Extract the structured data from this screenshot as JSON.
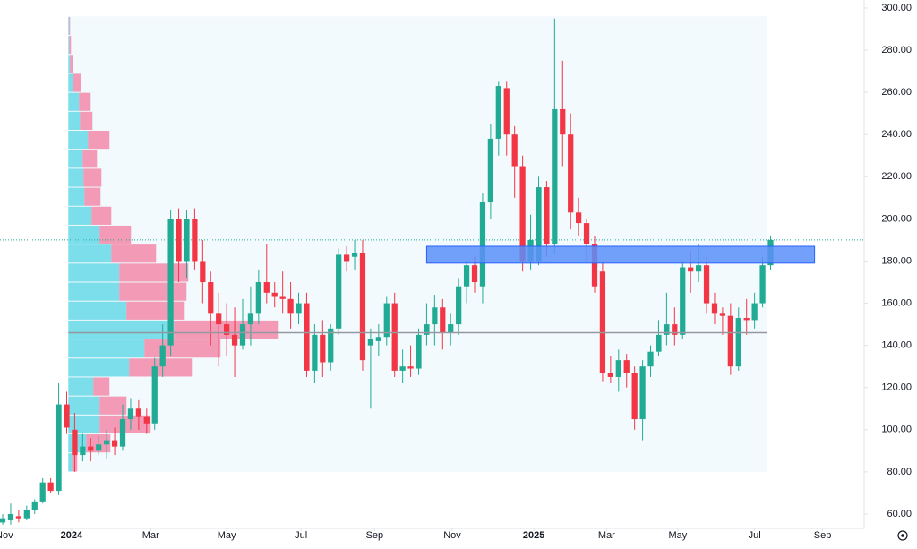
{
  "chart_data": {
    "type": "candlestick",
    "colors": {
      "up": "#22ab94",
      "down": "#f23645"
    },
    "x": [
      0,
      1,
      2,
      3,
      4,
      5,
      6,
      7,
      8,
      9,
      10,
      11,
      12,
      13,
      14,
      15,
      16,
      17,
      18,
      19,
      20,
      21,
      22,
      23,
      24,
      25,
      26,
      27,
      28,
      29,
      30,
      31,
      32,
      33,
      34,
      35,
      36,
      37,
      38,
      39,
      40,
      41,
      42,
      43,
      44,
      45,
      46,
      47,
      48,
      49,
      50,
      51,
      52,
      53,
      54,
      55,
      56,
      57,
      58,
      59,
      60,
      61,
      62,
      63,
      64,
      65,
      66,
      67,
      68,
      69,
      70,
      71,
      72,
      73,
      74,
      75,
      76,
      77,
      78,
      79,
      80,
      81,
      82,
      83,
      84,
      85,
      86,
      87,
      88,
      89,
      90,
      91,
      92,
      93,
      94,
      95,
      96
    ],
    "open": [
      56,
      57,
      59,
      58,
      62,
      66,
      75,
      71,
      112,
      100,
      88,
      92,
      90,
      93,
      95,
      92,
      105,
      110,
      106,
      103,
      130,
      140,
      200,
      180,
      200,
      180,
      170,
      155,
      150,
      145,
      140,
      150,
      155,
      170,
      165,
      163,
      162,
      155,
      160,
      128,
      145,
      132,
      148,
      183,
      182,
      184,
      140,
      142,
      144,
      160,
      128,
      130,
      129,
      145,
      150,
      158,
      146,
      150,
      168,
      178,
      168,
      208,
      238,
      262,
      240,
      225,
      180,
      180,
      215,
      188,
      252,
      240,
      203,
      198,
      188,
      175,
      127,
      125,
      133,
      127,
      105,
      130,
      137,
      145,
      150,
      145,
      177,
      175,
      178,
      160,
      155,
      154,
      130,
      153,
      152,
      160,
      178
    ],
    "close": [
      58,
      60,
      58,
      62,
      66,
      75,
      71,
      112,
      101,
      88,
      92,
      90,
      93,
      95,
      92,
      105,
      110,
      106,
      103,
      130,
      140,
      200,
      180,
      200,
      180,
      170,
      155,
      150,
      145,
      140,
      150,
      155,
      170,
      165,
      163,
      162,
      155,
      160,
      128,
      145,
      132,
      148,
      183,
      180,
      184,
      133,
      143,
      144,
      160,
      128,
      130,
      129,
      145,
      150,
      158,
      146,
      150,
      168,
      178,
      170,
      208,
      238,
      263,
      240,
      225,
      180,
      190,
      215,
      188,
      252,
      240,
      203,
      198,
      188,
      168,
      127,
      125,
      133,
      127,
      105,
      130,
      137,
      145,
      150,
      145,
      177,
      175,
      178,
      160,
      155,
      154,
      130,
      153,
      152,
      160,
      178,
      190
    ],
    "high": [
      60,
      65,
      62,
      64,
      67,
      77,
      77,
      122,
      118,
      108,
      98,
      96,
      97,
      100,
      101,
      112,
      115,
      114,
      110,
      134,
      150,
      204,
      205,
      204,
      205,
      190,
      175,
      165,
      160,
      158,
      162,
      168,
      176,
      188,
      170,
      175,
      170,
      165,
      165,
      150,
      152,
      150,
      186,
      187,
      190,
      190,
      148,
      150,
      163,
      165,
      138,
      140,
      148,
      160,
      164,
      162,
      155,
      172,
      180,
      182,
      212,
      245,
      265,
      265,
      244,
      230,
      202,
      220,
      218,
      295,
      275,
      250,
      210,
      200,
      192,
      180,
      135,
      138,
      136,
      130,
      133,
      140,
      152,
      165,
      158,
      180,
      185,
      188,
      182,
      165,
      158,
      160,
      158,
      162,
      165,
      182,
      192
    ],
    "low": [
      55,
      55,
      56,
      57,
      60,
      65,
      70,
      69,
      98,
      80,
      85,
      85,
      88,
      86,
      88,
      90,
      100,
      100,
      98,
      100,
      125,
      135,
      170,
      172,
      176,
      160,
      140,
      130,
      135,
      125,
      138,
      140,
      150,
      160,
      158,
      155,
      148,
      150,
      125,
      122,
      125,
      128,
      145,
      175,
      176,
      128,
      110,
      135,
      140,
      125,
      122,
      125,
      126,
      140,
      140,
      138,
      140,
      145,
      160,
      165,
      160,
      200,
      230,
      230,
      210,
      175,
      176,
      178,
      182,
      183,
      225,
      195,
      192,
      180,
      165,
      123,
      122,
      118,
      120,
      100,
      95,
      125,
      135,
      140,
      140,
      143,
      165,
      170,
      155,
      150,
      145,
      126,
      128,
      145,
      148,
      158,
      176
    ],
    "xlim": [
      -0.34,
      107.7
    ],
    "xticks": [
      {
        "value": 0.2,
        "label": "Nov"
      },
      {
        "value": 8.6,
        "label": "2024"
      },
      {
        "value": 18.5,
        "label": "Mar"
      },
      {
        "value": 28,
        "label": "May"
      },
      {
        "value": 37.3,
        "label": "Jul"
      },
      {
        "value": 46.5,
        "label": "Sep"
      },
      {
        "value": 56.2,
        "label": "Nov"
      },
      {
        "value": 66.4,
        "label": "2025"
      },
      {
        "value": 75.5,
        "label": "Mar"
      },
      {
        "value": 84.4,
        "label": "May"
      },
      {
        "value": 94,
        "label": "Jul"
      },
      {
        "value": 102.5,
        "label": "Sep"
      }
    ],
    "ylim": [
      53.2,
      303.8
    ],
    "yticks": [
      {
        "value": 60,
        "label": "60.00"
      },
      {
        "value": 80,
        "label": "80.00"
      },
      {
        "value": 100,
        "label": "100.00"
      },
      {
        "value": 120,
        "label": "120.00"
      },
      {
        "value": 140,
        "label": "140.00"
      },
      {
        "value": 160,
        "label": "160.00"
      },
      {
        "value": 180,
        "label": "180.00"
      },
      {
        "value": 200,
        "label": "200.00"
      },
      {
        "value": 220,
        "label": "220.00"
      },
      {
        "value": 240,
        "label": "240.00"
      },
      {
        "value": 260,
        "label": "260.00"
      },
      {
        "value": 280,
        "label": "280.00"
      },
      {
        "value": 300,
        "label": "300.00"
      }
    ],
    "volume_profile": {
      "x": [
        8.2,
        95.6
      ],
      "bins": [
        80,
        89,
        98,
        107,
        116,
        125,
        134,
        143,
        152,
        161,
        170,
        179,
        188,
        197,
        206,
        215,
        224,
        233,
        242,
        251,
        260,
        269,
        278,
        287,
        296
      ],
      "up": [
        4,
        20,
        35,
        35,
        28,
        68,
        85,
        118,
        65,
        57,
        57,
        48,
        35,
        26,
        18,
        17,
        16,
        22,
        13,
        12,
        5,
        2,
        1,
        1
      ],
      "down": [
        6,
        27,
        57,
        30,
        18,
        70,
        85,
        116,
        65,
        75,
        77,
        50,
        35,
        22,
        18,
        20,
        16,
        24,
        14,
        13,
        9,
        3,
        2,
        1
      ],
      "up_color": "#5ed7e6",
      "down_color": "#f27a9e"
    },
    "poc": 146,
    "zone": {
      "low": 179,
      "high": 187,
      "x": [
        53,
        101.5
      ],
      "color": "#5b8ff9"
    },
    "last_price": 190
  }
}
